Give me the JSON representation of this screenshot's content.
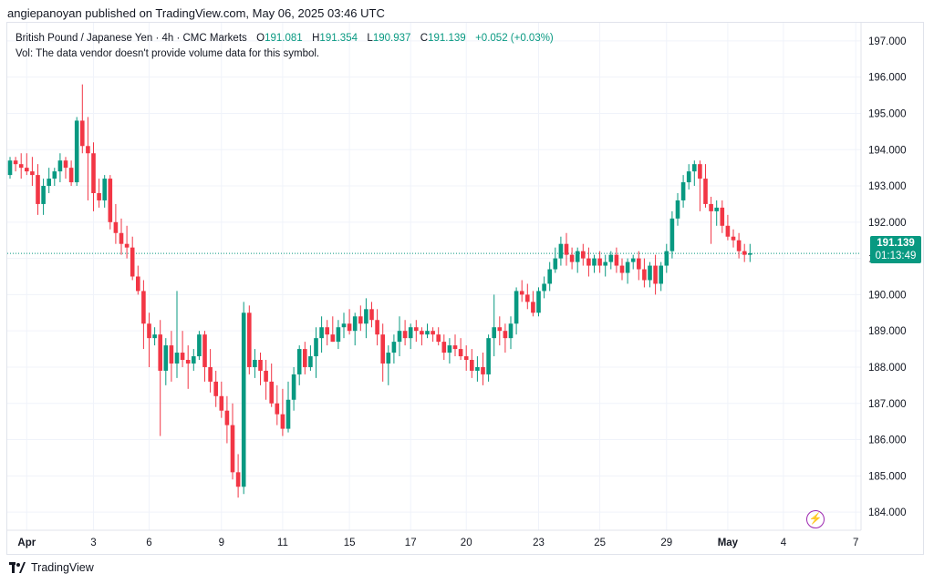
{
  "header": {
    "published_by": "angiepanoyan published on TradingView.com, May 06, 2025 03:46 UTC"
  },
  "legend": {
    "symbol_line": "British Pound / Japanese Yen · 4h · CMC Markets",
    "open_label": "O",
    "open": "191.081",
    "high_label": "H",
    "high": "191.354",
    "low_label": "L",
    "low": "190.937",
    "close_label": "C",
    "close": "191.139",
    "change": "+0.052 (+0.03%)",
    "vol_note": "Vol: The data vendor doesn't provide volume data for this symbol."
  },
  "price_badge": {
    "price": "191.139",
    "countdown": "01:13:49"
  },
  "footer": {
    "brand": "TradingView"
  },
  "colors": {
    "up": "#089981",
    "down": "#f23645",
    "grid": "#f0f3fa",
    "axis_text": "#131722",
    "current_line": "#089981",
    "bolt": "#9c27b0"
  },
  "icons": {
    "bolt": "lightning-bolt-icon",
    "logo": "tradingview-logo-icon"
  },
  "chart_data": {
    "type": "candlestick",
    "title": "British Pound / Japanese Yen · 4h · CMC Markets",
    "current_price": 191.139,
    "ylim": [
      183.5,
      197.5
    ],
    "y_ticks": [
      184,
      185,
      186,
      187,
      188,
      189,
      190,
      191,
      192,
      193,
      194,
      195,
      196,
      197
    ],
    "y_tick_labels": [
      "184.000",
      "185.000",
      "186.000",
      "187.000",
      "188.000",
      "189.000",
      "190.000",
      "191.000",
      "192.000",
      "193.000",
      "194.000",
      "195.000",
      "196.000",
      "197.000"
    ],
    "x_labels": [
      {
        "label": "Apr",
        "bar": 3
      },
      {
        "label": "3",
        "bar": 15
      },
      {
        "label": "6",
        "bar": 25
      },
      {
        "label": "9",
        "bar": 38
      },
      {
        "label": "11",
        "bar": 49
      },
      {
        "label": "15",
        "bar": 61
      },
      {
        "label": "17",
        "bar": 72
      },
      {
        "label": "20",
        "bar": 82
      },
      {
        "label": "23",
        "bar": 95
      },
      {
        "label": "25",
        "bar": 106
      },
      {
        "label": "29",
        "bar": 118
      },
      {
        "label": "May",
        "bar": 129
      },
      {
        "label": "4",
        "bar": 139
      },
      {
        "label": "7",
        "bar": 152
      }
    ],
    "candles": [
      [
        193.3,
        193.8,
        193.2,
        193.7
      ],
      [
        193.7,
        193.8,
        193.4,
        193.6
      ],
      [
        193.6,
        193.9,
        193.2,
        193.5
      ],
      [
        193.5,
        193.9,
        193.3,
        193.4
      ],
      [
        193.4,
        193.8,
        193.0,
        193.3
      ],
      [
        193.3,
        193.6,
        192.2,
        192.5
      ],
      [
        192.5,
        193.2,
        192.2,
        193.0
      ],
      [
        193.0,
        193.5,
        192.8,
        193.2
      ],
      [
        193.2,
        193.5,
        193.0,
        193.4
      ],
      [
        193.4,
        193.9,
        193.1,
        193.7
      ],
      [
        193.7,
        193.8,
        193.2,
        193.5
      ],
      [
        193.5,
        193.7,
        193.0,
        193.1
      ],
      [
        193.1,
        194.9,
        193.0,
        194.8
      ],
      [
        194.8,
        195.8,
        193.9,
        194.1
      ],
      [
        194.1,
        194.9,
        192.6,
        193.9
      ],
      [
        193.9,
        194.2,
        192.3,
        192.8
      ],
      [
        192.8,
        193.2,
        192.4,
        192.6
      ],
      [
        192.6,
        193.3,
        192.4,
        193.2
      ],
      [
        193.2,
        193.3,
        191.8,
        192.0
      ],
      [
        192.0,
        192.5,
        191.4,
        191.7
      ],
      [
        191.7,
        192.1,
        191.1,
        191.4
      ],
      [
        191.4,
        191.9,
        191.0,
        191.3
      ],
      [
        191.3,
        191.6,
        190.4,
        190.5
      ],
      [
        190.5,
        190.8,
        190.0,
        190.1
      ],
      [
        190.1,
        190.4,
        188.5,
        189.2
      ],
      [
        189.2,
        189.5,
        188.0,
        188.8
      ],
      [
        188.8,
        189.1,
        188.6,
        188.9
      ],
      [
        188.9,
        189.3,
        186.1,
        187.9
      ],
      [
        187.9,
        188.8,
        187.5,
        188.6
      ],
      [
        188.6,
        189.0,
        187.6,
        188.1
      ],
      [
        188.1,
        190.1,
        187.7,
        188.4
      ],
      [
        188.4,
        189.0,
        188.0,
        188.2
      ],
      [
        188.2,
        188.6,
        187.4,
        188.1
      ],
      [
        188.1,
        188.5,
        187.9,
        188.3
      ],
      [
        188.3,
        189.0,
        188.2,
        188.9
      ],
      [
        188.9,
        189.0,
        187.6,
        188.0
      ],
      [
        188.0,
        188.5,
        187.3,
        187.6
      ],
      [
        187.6,
        187.9,
        186.9,
        187.2
      ],
      [
        187.2,
        187.6,
        186.6,
        186.8
      ],
      [
        186.8,
        187.2,
        185.9,
        186.4
      ],
      [
        186.4,
        187.0,
        184.9,
        185.1
      ],
      [
        185.1,
        185.6,
        184.4,
        184.7
      ],
      [
        184.7,
        189.8,
        184.5,
        189.5
      ],
      [
        189.5,
        189.7,
        187.8,
        188.0
      ],
      [
        188.0,
        188.5,
        187.7,
        188.2
      ],
      [
        188.2,
        188.4,
        187.5,
        187.9
      ],
      [
        187.9,
        188.2,
        187.1,
        187.6
      ],
      [
        187.6,
        188.1,
        186.9,
        187.0
      ],
      [
        187.0,
        187.5,
        186.4,
        186.7
      ],
      [
        186.7,
        187.4,
        186.1,
        186.3
      ],
      [
        186.3,
        187.6,
        186.2,
        187.1
      ],
      [
        187.1,
        188.0,
        186.8,
        187.8
      ],
      [
        187.8,
        188.6,
        187.5,
        188.5
      ],
      [
        188.5,
        188.7,
        187.8,
        188.0
      ],
      [
        188.0,
        188.6,
        187.9,
        188.3
      ],
      [
        188.3,
        189.1,
        187.7,
        188.8
      ],
      [
        188.8,
        189.4,
        188.4,
        189.1
      ],
      [
        189.1,
        189.3,
        188.6,
        188.9
      ],
      [
        188.9,
        189.4,
        188.7,
        188.7
      ],
      [
        188.7,
        189.3,
        188.5,
        189.1
      ],
      [
        189.1,
        189.5,
        188.8,
        189.2
      ],
      [
        189.2,
        189.6,
        188.9,
        189.0
      ],
      [
        189.0,
        189.5,
        188.6,
        189.4
      ],
      [
        189.4,
        189.7,
        189.0,
        189.2
      ],
      [
        189.2,
        189.9,
        188.8,
        189.6
      ],
      [
        189.6,
        189.8,
        189.1,
        189.3
      ],
      [
        189.3,
        189.6,
        188.6,
        188.9
      ],
      [
        188.9,
        189.2,
        187.6,
        188.1
      ],
      [
        188.1,
        188.6,
        187.5,
        188.4
      ],
      [
        188.4,
        188.9,
        188.1,
        188.7
      ],
      [
        188.7,
        189.4,
        188.3,
        189.0
      ],
      [
        189.0,
        189.3,
        188.6,
        188.8
      ],
      [
        188.8,
        189.2,
        188.5,
        189.1
      ],
      [
        189.1,
        189.3,
        188.7,
        189.0
      ],
      [
        189.0,
        189.1,
        188.6,
        188.9
      ],
      [
        188.9,
        189.2,
        188.8,
        189.0
      ],
      [
        189.0,
        189.1,
        188.7,
        188.9
      ],
      [
        188.9,
        189.1,
        188.6,
        188.7
      ],
      [
        188.7,
        188.9,
        188.2,
        188.4
      ],
      [
        188.4,
        188.8,
        188.1,
        188.6
      ],
      [
        188.6,
        188.9,
        188.3,
        188.5
      ],
      [
        188.5,
        188.8,
        188.2,
        188.3
      ],
      [
        188.3,
        188.6,
        187.9,
        188.2
      ],
      [
        188.2,
        188.5,
        187.7,
        187.9
      ],
      [
        187.9,
        188.3,
        187.6,
        188.0
      ],
      [
        188.0,
        188.4,
        187.5,
        187.8
      ],
      [
        187.8,
        188.9,
        187.6,
        188.8
      ],
      [
        188.8,
        190.0,
        188.3,
        189.1
      ],
      [
        189.1,
        189.4,
        188.6,
        189.0
      ],
      [
        189.0,
        189.2,
        188.4,
        188.8
      ],
      [
        188.8,
        189.4,
        188.5,
        189.2
      ],
      [
        189.2,
        190.2,
        188.9,
        190.1
      ],
      [
        190.1,
        190.4,
        189.8,
        190.0
      ],
      [
        190.0,
        190.3,
        189.6,
        189.8
      ],
      [
        189.8,
        190.1,
        189.4,
        189.5
      ],
      [
        189.5,
        190.2,
        189.4,
        190.1
      ],
      [
        190.1,
        190.5,
        189.9,
        190.3
      ],
      [
        190.3,
        190.9,
        190.1,
        190.7
      ],
      [
        190.7,
        191.3,
        190.6,
        191.0
      ],
      [
        191.0,
        191.6,
        190.8,
        191.4
      ],
      [
        191.4,
        191.7,
        190.8,
        191.1
      ],
      [
        191.1,
        191.3,
        190.7,
        190.9
      ],
      [
        190.9,
        191.3,
        190.6,
        191.2
      ],
      [
        191.2,
        191.4,
        190.8,
        191.0
      ],
      [
        191.0,
        191.3,
        190.5,
        190.8
      ],
      [
        190.8,
        191.1,
        190.6,
        191.0
      ],
      [
        191.0,
        191.2,
        190.6,
        190.8
      ],
      [
        190.8,
        191.1,
        190.5,
        190.9
      ],
      [
        190.9,
        191.2,
        190.7,
        191.1
      ],
      [
        191.1,
        191.3,
        190.6,
        190.8
      ],
      [
        190.8,
        191.0,
        190.4,
        190.6
      ],
      [
        190.6,
        191.0,
        190.3,
        190.9
      ],
      [
        190.9,
        191.1,
        190.7,
        191.0
      ],
      [
        191.0,
        191.2,
        190.4,
        190.7
      ],
      [
        190.7,
        191.0,
        190.2,
        190.4
      ],
      [
        190.4,
        190.9,
        190.2,
        190.8
      ],
      [
        190.8,
        191.1,
        190.0,
        190.3
      ],
      [
        190.3,
        190.9,
        190.1,
        190.8
      ],
      [
        190.8,
        191.4,
        190.6,
        191.2
      ],
      [
        191.2,
        192.3,
        191.0,
        192.1
      ],
      [
        192.1,
        192.8,
        191.9,
        192.6
      ],
      [
        192.6,
        193.3,
        192.4,
        193.1
      ],
      [
        193.1,
        193.6,
        192.9,
        193.4
      ],
      [
        193.4,
        193.7,
        193.0,
        193.6
      ],
      [
        193.6,
        193.7,
        192.3,
        193.2
      ],
      [
        193.2,
        193.6,
        192.4,
        192.5
      ],
      [
        192.5,
        192.7,
        191.4,
        192.3
      ],
      [
        192.3,
        192.6,
        191.9,
        192.4
      ],
      [
        192.4,
        192.6,
        191.7,
        191.9
      ],
      [
        191.9,
        192.2,
        191.5,
        191.6
      ],
      [
        191.6,
        191.8,
        191.3,
        191.5
      ],
      [
        191.5,
        191.7,
        191.0,
        191.2
      ],
      [
        191.2,
        191.4,
        190.9,
        191.1
      ],
      [
        191.1,
        191.4,
        190.9,
        191.14
      ]
    ]
  }
}
